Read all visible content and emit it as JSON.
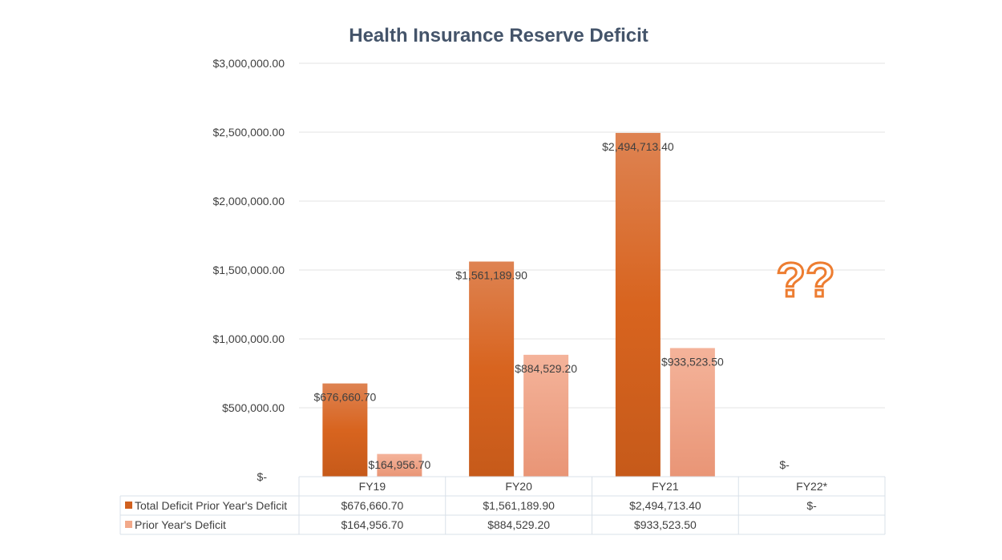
{
  "chart_data": {
    "type": "bar",
    "title": "Health Insurance Reserve Deficit",
    "categories": [
      "FY19",
      "FY20",
      "FY21",
      "FY22*"
    ],
    "series": [
      {
        "name": "Total Deficit Prior Year's Deficit",
        "values": [
          676660.7,
          1561189.9,
          2494713.4,
          0
        ],
        "labels": [
          "$676,660.70",
          "$1,561,189.90",
          "$2,494,713.40",
          "$-"
        ],
        "color": "#d0601f",
        "color_light": "#de8352"
      },
      {
        "name": "Prior Year's Deficit",
        "values": [
          164956.7,
          884529.2,
          933523.5,
          null
        ],
        "labels": [
          "$164,956.70",
          "$884,529.20",
          "$933,523.50",
          ""
        ],
        "color": "#f2a98a",
        "color_light": "#f4b39a"
      }
    ],
    "yticks": [
      "$-",
      "$500,000.00",
      "$1,000,000.00",
      "$1,500,000.00",
      "$2,000,000.00",
      "$2,500,000.00",
      "$3,000,000.00"
    ],
    "ylim": [
      0,
      3000000
    ],
    "grid": true,
    "legend": "data-table",
    "annotation": "??"
  }
}
